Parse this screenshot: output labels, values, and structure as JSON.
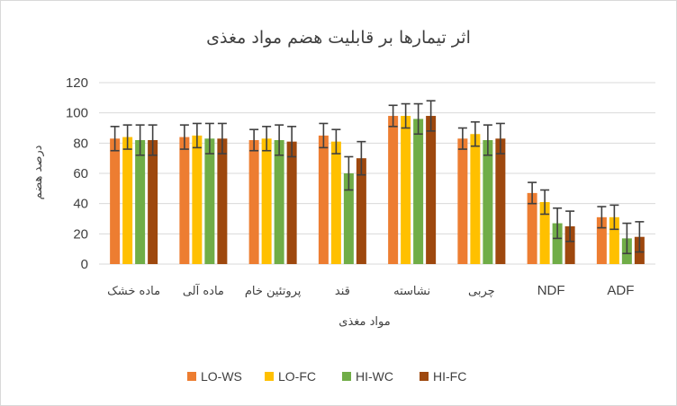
{
  "chart_data": {
    "type": "bar",
    "title": "اثر تیمارها بر قابلیت هضم مواد مغذی",
    "xlabel": "مواد مغذی",
    "ylabel": "درصد هضم",
    "ylim": [
      0,
      120
    ],
    "yticks": [
      0,
      20,
      40,
      60,
      80,
      100,
      120
    ],
    "grid": true,
    "legend_position": "bottom",
    "error_bars": true,
    "categories": [
      "ماده خشک",
      "ماده آلی",
      "پروتئین خام",
      "قند",
      "نشاسته",
      "چربی",
      "NDF",
      "ADF"
    ],
    "series": [
      {
        "name": "LO-WS",
        "color": "#ED7D31",
        "values": [
          83,
          84,
          82,
          85,
          98,
          83,
          47,
          31
        ],
        "errors": [
          8,
          8,
          7,
          8,
          7,
          7,
          7,
          7
        ]
      },
      {
        "name": "LO-FC",
        "color": "#FFC000",
        "values": [
          84,
          85,
          83,
          81,
          98,
          86,
          41,
          31
        ],
        "errors": [
          8,
          8,
          8,
          8,
          8,
          8,
          8,
          8
        ]
      },
      {
        "name": "HI-WC",
        "color": "#70AD47",
        "values": [
          82,
          83,
          82,
          60,
          96,
          82,
          27,
          17
        ],
        "errors": [
          10,
          10,
          10,
          11,
          10,
          10,
          10,
          10
        ]
      },
      {
        "name": "HI-FC",
        "color": "#9E480E",
        "values": [
          82,
          83,
          81,
          70,
          98,
          83,
          25,
          18
        ],
        "errors": [
          10,
          10,
          10,
          11,
          10,
          10,
          10,
          10
        ]
      }
    ]
  }
}
